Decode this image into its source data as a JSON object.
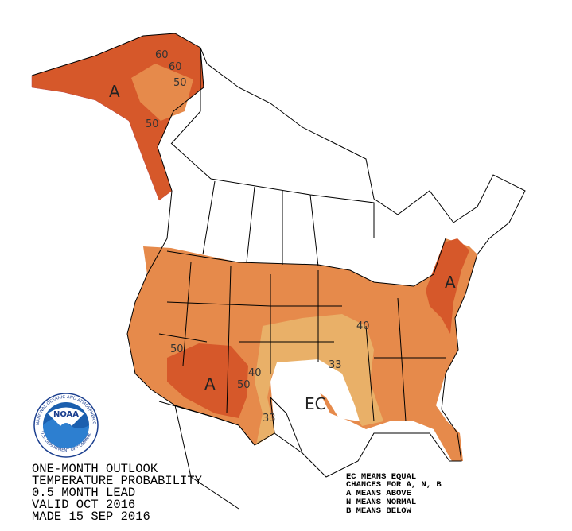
{
  "title_block": {
    "lines": [
      "ONE-MONTH OUTLOOK",
      "TEMPERATURE PROBABILITY",
      "0.5 MONTH LEAD",
      "VALID OCT 2016",
      "MADE 15 SEP 2016"
    ]
  },
  "legend": {
    "lines": [
      "EC MEANS EQUAL",
      "CHANCES FOR A, N, B",
      "A MEANS ABOVE",
      "N MEANS NORMAL",
      "B MEANS BELOW"
    ]
  },
  "map": {
    "region_labels": [
      "A",
      "A",
      "A",
      "EC"
    ],
    "contour_labels": [
      "60",
      "60",
      "50",
      "50",
      "50",
      "40",
      "50",
      "40",
      "33",
      "33"
    ]
  },
  "logo": {
    "text": "NOAA",
    "ring_top": "NATIONAL OCEANIC AND ATMOSPHERIC ADMINISTRATION",
    "ring_bottom": "U.S. DEPARTMENT OF COMMERCE"
  }
}
